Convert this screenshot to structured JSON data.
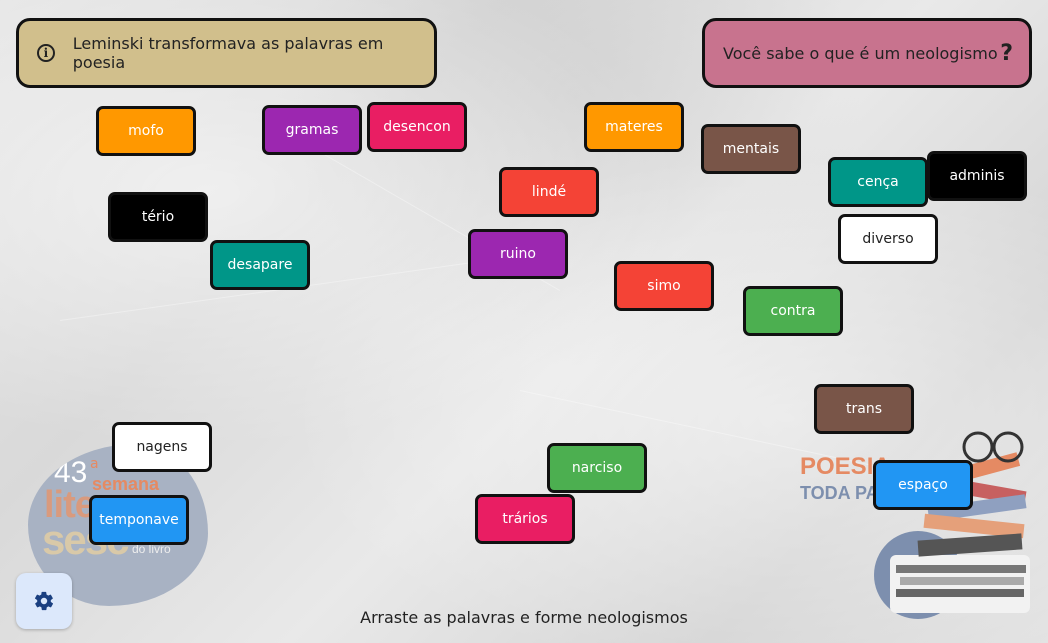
{
  "header": {
    "left_text": "Leminski transformava as palavras em poesia",
    "right_text": "Você sabe o que é um neologismo",
    "info_glyph": "i",
    "help_glyph": "?"
  },
  "tiles": [
    {
      "label": "mofo",
      "color": "#ff9800"
    },
    {
      "label": "gramas",
      "color": "#9c27b0"
    },
    {
      "label": "desencon",
      "color": "#e91e63"
    },
    {
      "label": "materes",
      "color": "#ff9800"
    },
    {
      "label": "mentais",
      "color": "#795548"
    },
    {
      "label": "cença",
      "color": "#009688"
    },
    {
      "label": "adminis",
      "color": "#000000"
    },
    {
      "label": "tério",
      "color": "#000000"
    },
    {
      "label": "lindé",
      "color": "#f44336"
    },
    {
      "label": "diverso",
      "color": "#ffffff"
    },
    {
      "label": "desapare",
      "color": "#009688"
    },
    {
      "label": "ruino",
      "color": "#9c27b0"
    },
    {
      "label": "simo",
      "color": "#f44336"
    },
    {
      "label": "contra",
      "color": "#4caf50"
    },
    {
      "label": "trans",
      "color": "#795548"
    },
    {
      "label": "nagens",
      "color": "#ffffff"
    },
    {
      "label": "narciso",
      "color": "#4caf50"
    },
    {
      "label": "espaço",
      "color": "#2196f3"
    },
    {
      "label": "temponave",
      "color": "#2196f3"
    },
    {
      "label": "trários",
      "color": "#e91e63"
    }
  ],
  "logos": {
    "left": {
      "number": "43",
      "sup": "a",
      "line1": "semana",
      "line2": "lite",
      "line3": "sesc",
      "line4": "do livro"
    },
    "right": {
      "line1": "POESIA",
      "line2": "TODA PAR"
    }
  },
  "instruction": "Arraste as palavras e forme neologismos",
  "settings_icon": "gear-icon"
}
